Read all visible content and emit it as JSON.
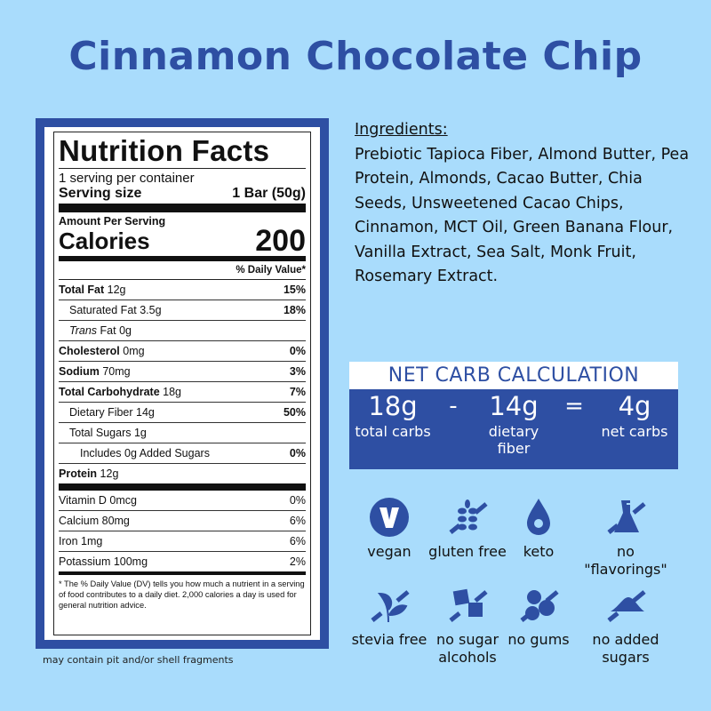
{
  "title": "Cinnamon Chocolate Chip",
  "label": {
    "heading": "Nutrition Facts",
    "servings": "1 serving per container",
    "serving_size_label": "Serving size",
    "serving_size_value": "1 Bar (50g)",
    "amount_per_serving": "Amount Per Serving",
    "calories_label": "Calories",
    "calories_value": "200",
    "daily_value_header": "% Daily Value*",
    "rows": [
      {
        "name": "Total Fat",
        "amount": "12g",
        "dv": "15%"
      },
      {
        "name": "Saturated Fat",
        "amount": "3.5g",
        "dv": "18%"
      },
      {
        "name": "Trans",
        "name_rest": "Fat",
        "amount": "0g",
        "dv": ""
      },
      {
        "name": "Cholesterol",
        "amount": "0mg",
        "dv": "0%"
      },
      {
        "name": "Sodium",
        "amount": "70mg",
        "dv": "3%"
      },
      {
        "name": "Total Carbohydrate",
        "amount": "18g",
        "dv": "7%"
      },
      {
        "name": "Dietary Fiber",
        "amount": "14g",
        "dv": "50%"
      },
      {
        "name": "Total Sugars",
        "amount": "1g",
        "dv": ""
      },
      {
        "name": "Includes 0g Added Sugars",
        "amount": "",
        "dv": "0%"
      },
      {
        "name": "Protein",
        "amount": "12g",
        "dv": ""
      }
    ],
    "vitamins": [
      {
        "name": "Vitamin D 0mcg",
        "dv": "0%"
      },
      {
        "name": "Calcium 80mg",
        "dv": "6%"
      },
      {
        "name": "Iron 1mg",
        "dv": "6%"
      },
      {
        "name": "Potassium 100mg",
        "dv": "2%"
      }
    ],
    "footnote": "* The % Daily Value (DV) tells you how much a nutrient in a serving of food contributes to a daily diet. 2,000 calories a day is used for general nutrition advice."
  },
  "disclaimer": "may contain pit and/or shell fragments",
  "ingredients": {
    "heading": "Ingredients:",
    "text": "Prebiotic Tapioca Fiber, Almond Butter, Pea Protein, Almonds, Cacao Butter, Chia Seeds, Unsweetened Cacao Chips, Cinnamon, MCT Oil, Green Banana Flour, Vanilla Extract, Sea Salt, Monk Fruit, Rosemary Extract."
  },
  "net_carb": {
    "heading": "NET CARB CALCULATION",
    "total": "18g",
    "total_label": "total carbs",
    "minus": "-",
    "fiber": "14g",
    "fiber_label": "dietary fiber",
    "equals": "=",
    "net": "4g",
    "net_label": "net carbs"
  },
  "badges": [
    {
      "icon": "vegan-v-icon",
      "label": "vegan"
    },
    {
      "icon": "wheat-crossed-icon",
      "label": "gluten free"
    },
    {
      "icon": "drop-icon",
      "label": "keto"
    },
    {
      "icon": "flask-crossed-icon",
      "label": "no \"flavorings\""
    },
    {
      "icon": "leaf-crossed-icon",
      "label": "stevia free"
    },
    {
      "icon": "sugar-cubes-crossed-icon",
      "label": "no sugar alcohols"
    },
    {
      "icon": "gum-balls-crossed-icon",
      "label": "no gums"
    },
    {
      "icon": "sugar-pile-crossed-icon",
      "label": "no added sugars"
    }
  ],
  "colors": {
    "background": "#a9dcfc",
    "brand": "#2e4fa3"
  }
}
